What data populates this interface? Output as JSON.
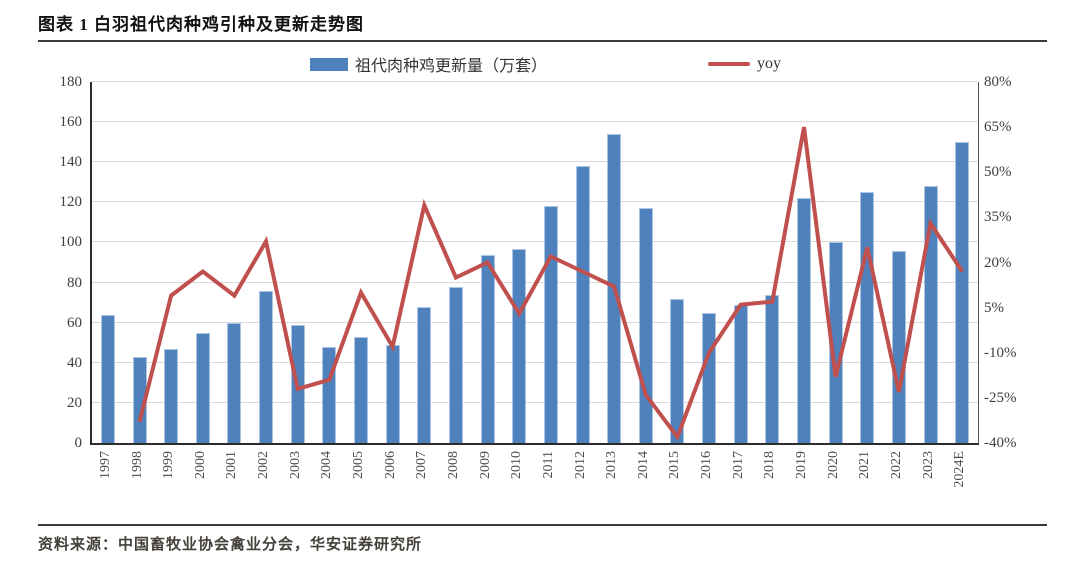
{
  "figure": {
    "title": "图表 1 白羽祖代肉种鸡引种及更新走势图",
    "source": "资料来源：中国畜牧业协会禽业分会，华安证券研究所"
  },
  "legend": [
    {
      "label": "祖代肉种鸡更新量（万套）",
      "color": "#4f81bd",
      "type": "bar"
    },
    {
      "label": "yoy",
      "color": "#c0504d",
      "type": "line"
    }
  ],
  "chart_data": {
    "type": "combo-bar-line",
    "title": "白羽祖代肉种鸡引种及更新走势图",
    "categories": [
      "1997",
      "1998",
      "1999",
      "2000",
      "2001",
      "2002",
      "2003",
      "2004",
      "2005",
      "2006",
      "2007",
      "2008",
      "2009",
      "2010",
      "2011",
      "2012",
      "2013",
      "2014",
      "2015",
      "2016",
      "2017",
      "2018",
      "2019",
      "2020",
      "2021",
      "2022",
      "2023",
      "2024E"
    ],
    "series": [
      {
        "name": "祖代肉种鸡更新量（万套）",
        "type": "bar",
        "axis": "left",
        "color": "#4f81bd",
        "values": [
          64,
          43,
          47,
          55,
          60,
          76,
          59,
          48,
          53,
          49,
          68,
          78,
          94,
          97,
          118,
          138,
          154,
          117,
          72,
          65,
          69,
          74,
          122,
          100,
          125,
          96,
          128,
          150
        ]
      },
      {
        "name": "yoy",
        "type": "line",
        "axis": "right",
        "color": "#c0504d",
        "values_pct": [
          null,
          -33,
          9,
          17,
          9,
          27,
          -22,
          -19,
          10,
          -8,
          39,
          15,
          20,
          3,
          22,
          17,
          12,
          -24,
          -38,
          -10,
          6,
          7,
          65,
          -18,
          25,
          -23,
          33,
          17
        ]
      }
    ],
    "left_axis": {
      "min": 0,
      "max": 180,
      "step": 20
    },
    "right_axis": {
      "min": -40,
      "max": 80,
      "step": 15,
      "suffix": "%"
    },
    "grid": true,
    "legend_position": "top",
    "colors": {
      "bar": "#4f81bd",
      "bar_border": "#adc5e0",
      "line": "#c0504d",
      "gridline": "#d9d9d9"
    }
  }
}
